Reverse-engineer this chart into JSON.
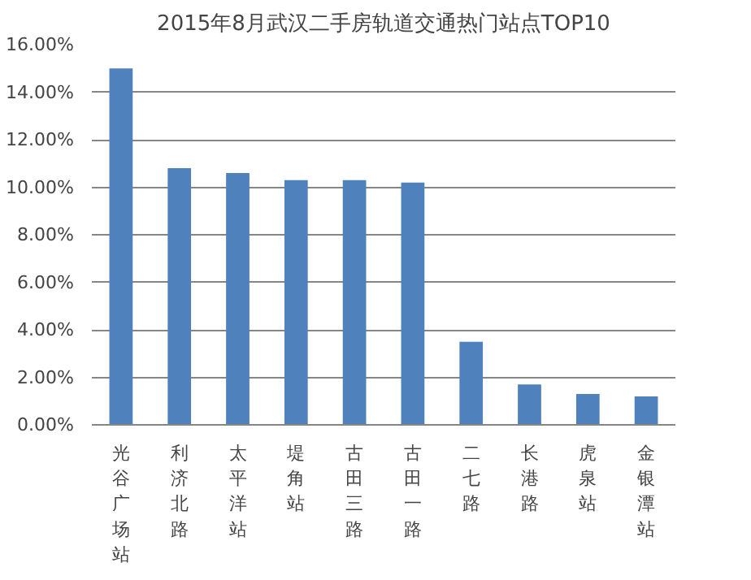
{
  "chart_data": {
    "type": "bar",
    "title": "2015年8月武汉二手房轨道交通热门站点TOP10",
    "categories": [
      "光谷广场站",
      "利济北路",
      "太平洋站",
      "堤角站",
      "古田三路",
      "古田一路",
      "二七路",
      "长港路",
      "虎泉站",
      "金银潭站"
    ],
    "values": [
      15.0,
      10.8,
      10.6,
      10.3,
      10.3,
      10.2,
      3.5,
      1.7,
      1.3,
      1.2
    ],
    "color": "#4f81bd",
    "ylim": [
      0,
      16
    ],
    "yticks": [
      {
        "value": 0,
        "label": "0.00%"
      },
      {
        "value": 2,
        "label": "2.00%"
      },
      {
        "value": 4,
        "label": "4.00%"
      },
      {
        "value": 6,
        "label": "6.00%"
      },
      {
        "value": 8,
        "label": "8.00%"
      },
      {
        "value": 10,
        "label": "10.00%"
      },
      {
        "value": 12,
        "label": "12.00%"
      },
      {
        "value": 14,
        "label": "14.00%"
      },
      {
        "value": 16,
        "label": "16.00%"
      }
    ],
    "grid": "y"
  }
}
